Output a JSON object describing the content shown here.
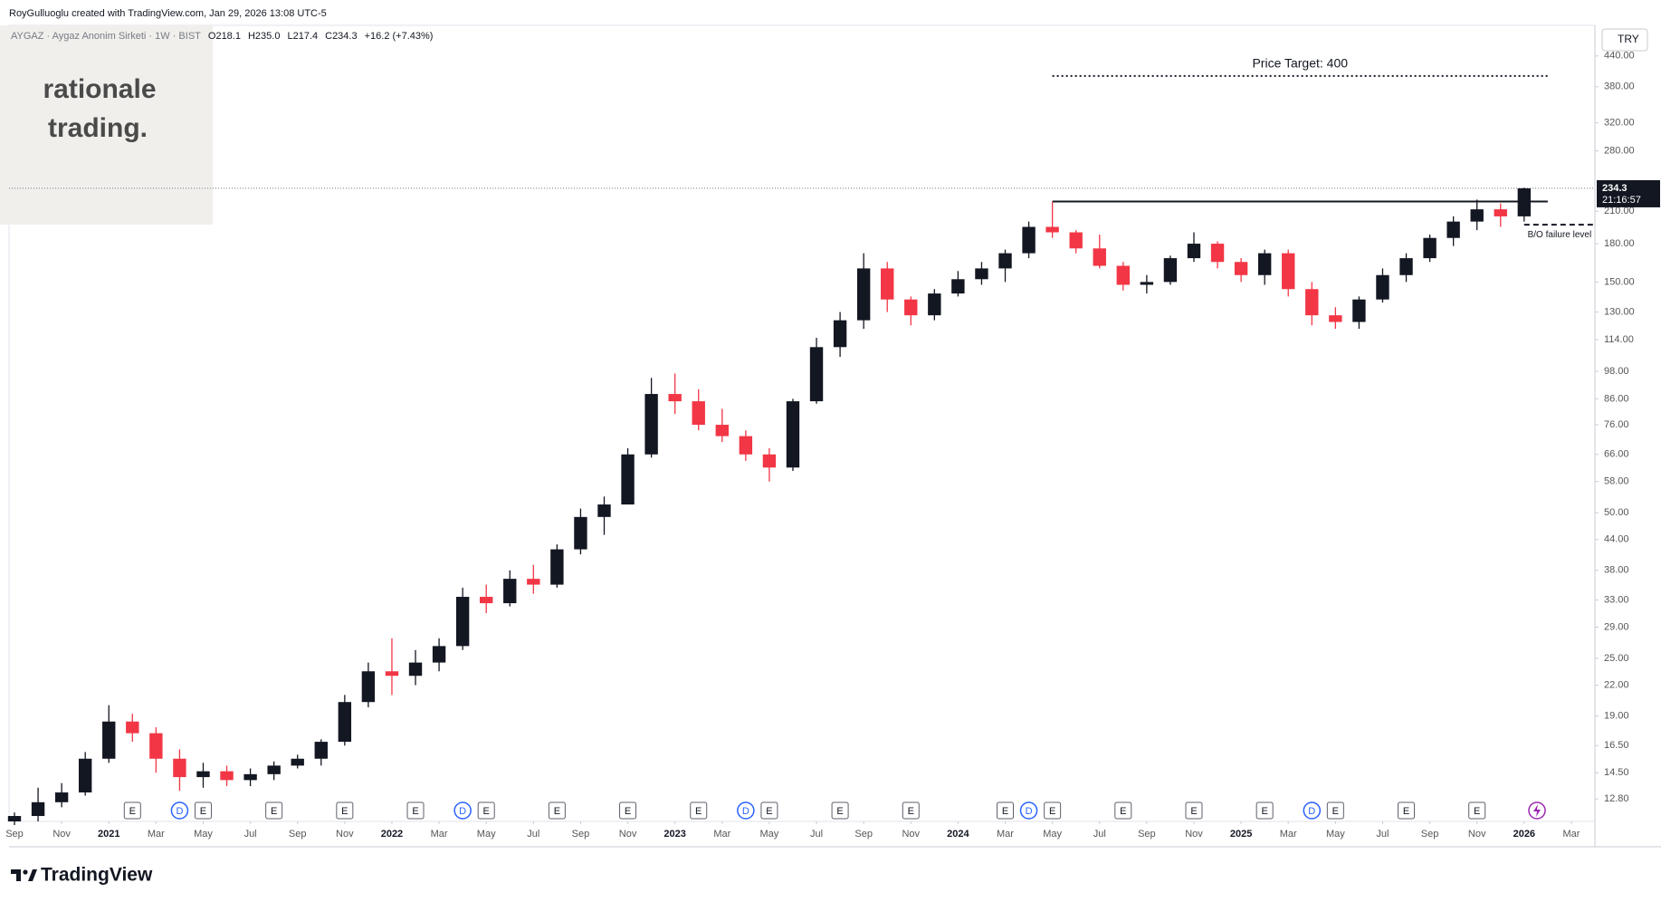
{
  "chart_data": {
    "type": "candlestick",
    "credit": "RoyGulluoglu created with TradingView.com, Jan 29, 2026 13:08 UTC-5",
    "symbol": "AYGAZ · Aygaz Anonim Sirketi · 1W · BIST",
    "ohlc_header": [
      "O218.1",
      "H235.0",
      "L217.4",
      "C234.3",
      "+16.2 (+7.43%)"
    ],
    "watermark": [
      "rationale",
      "trading."
    ],
    "currency": "TRY",
    "logo": "TradingView",
    "up_color": "#131722",
    "down_color": "#f23645",
    "log_scale": true,
    "grid": false,
    "x": [
      "2020-09",
      "2020-10",
      "2020-11",
      "2020-12",
      "2021-01",
      "2021-02",
      "2021-03",
      "2021-04",
      "2021-05",
      "2021-06",
      "2021-07",
      "2021-08",
      "2021-09",
      "2021-10",
      "2021-11",
      "2021-12",
      "2022-01",
      "2022-02",
      "2022-03",
      "2022-04",
      "2022-05",
      "2022-06",
      "2022-07",
      "2022-08",
      "2022-09",
      "2022-10",
      "2022-11",
      "2022-12",
      "2023-01",
      "2023-02",
      "2023-03",
      "2023-04",
      "2023-05",
      "2023-06",
      "2023-07",
      "2023-08",
      "2023-09",
      "2023-10",
      "2023-11",
      "2023-12",
      "2024-01",
      "2024-02",
      "2024-03",
      "2024-04",
      "2024-05",
      "2024-06",
      "2024-07",
      "2024-08",
      "2024-09",
      "2024-10",
      "2024-11",
      "2024-12",
      "2025-01",
      "2025-02",
      "2025-03",
      "2025-04",
      "2025-05",
      "2025-06",
      "2025-07",
      "2025-08",
      "2025-09",
      "2025-10",
      "2025-11",
      "2025-12",
      "2026-01"
    ],
    "open": [
      11.5,
      11.8,
      12.6,
      13.2,
      15.5,
      18.5,
      17.5,
      15.5,
      14.2,
      14.6,
      14,
      14.4,
      15,
      15.5,
      16.8,
      20.3,
      23.5,
      23,
      24.5,
      26.5,
      33.5,
      32.5,
      36.5,
      35.5,
      42,
      49,
      52,
      66,
      88,
      85,
      76,
      72,
      66,
      62,
      85,
      110,
      125,
      160,
      138,
      128,
      142,
      152,
      160,
      172,
      195,
      190,
      176,
      162,
      148,
      150,
      168,
      180,
      165,
      155,
      172,
      145,
      128,
      124,
      138,
      155,
      168,
      185,
      200,
      212,
      205
    ],
    "high": [
      12,
      13.5,
      13.8,
      16,
      20,
      19.2,
      18,
      16.2,
      15.2,
      15,
      14.8,
      15.3,
      15.8,
      17,
      21,
      24.5,
      27.5,
      26,
      27.5,
      35,
      35.5,
      38,
      39,
      43,
      51,
      54,
      68,
      95,
      97,
      90,
      82,
      74,
      68,
      86,
      115,
      130,
      172,
      165,
      140,
      145,
      158,
      165,
      175,
      200,
      220,
      192,
      188,
      165,
      155,
      170,
      190,
      182,
      168,
      175,
      175,
      150,
      133,
      140,
      160,
      172,
      188,
      205,
      222,
      218,
      235
    ],
    "low": [
      11.3,
      11.5,
      12.3,
      13,
      15.2,
      16.8,
      14.5,
      13.3,
      13.5,
      13.6,
      13.6,
      14,
      14.8,
      15,
      16.5,
      19.8,
      21,
      22,
      23.5,
      26,
      31,
      32,
      34,
      35,
      41,
      45,
      52,
      65,
      80,
      74,
      70,
      64,
      58,
      61,
      84,
      105,
      120,
      130,
      122,
      125,
      140,
      148,
      150,
      168,
      185,
      172,
      160,
      144,
      142,
      148,
      165,
      160,
      150,
      148,
      140,
      122,
      120,
      120,
      136,
      150,
      165,
      178,
      192,
      195,
      200
    ],
    "close": [
      11.8,
      12.6,
      13.2,
      15.5,
      18.5,
      17.5,
      15.5,
      14.2,
      14.6,
      14,
      14.4,
      15,
      15.5,
      16.8,
      20.3,
      23.5,
      23,
      24.5,
      26.5,
      33.5,
      32.5,
      36.5,
      35.5,
      42,
      49,
      52,
      66,
      88,
      85,
      76,
      72,
      66,
      62,
      85,
      110,
      125,
      160,
      138,
      128,
      142,
      152,
      160,
      172,
      195,
      190,
      176,
      162,
      148,
      150,
      168,
      180,
      165,
      155,
      172,
      145,
      128,
      124,
      138,
      155,
      168,
      185,
      200,
      212,
      205,
      234.3
    ],
    "xlim": [
      "2020-09",
      "2026-04"
    ],
    "xticks": [
      {
        "value": "2020-09",
        "label": "Sep"
      },
      {
        "value": "2020-11",
        "label": "Nov"
      },
      {
        "value": "2021-01",
        "label": "2021"
      },
      {
        "value": "2021-03",
        "label": "Mar"
      },
      {
        "value": "2021-05",
        "label": "May"
      },
      {
        "value": "2021-07",
        "label": "Jul"
      },
      {
        "value": "2021-09",
        "label": "Sep"
      },
      {
        "value": "2021-11",
        "label": "Nov"
      },
      {
        "value": "2022-01",
        "label": "2022"
      },
      {
        "value": "2022-03",
        "label": "Mar"
      },
      {
        "value": "2022-05",
        "label": "May"
      },
      {
        "value": "2022-07",
        "label": "Jul"
      },
      {
        "value": "2022-09",
        "label": "Sep"
      },
      {
        "value": "2022-11",
        "label": "Nov"
      },
      {
        "value": "2023-01",
        "label": "2023"
      },
      {
        "value": "2023-03",
        "label": "Mar"
      },
      {
        "value": "2023-05",
        "label": "May"
      },
      {
        "value": "2023-07",
        "label": "Jul"
      },
      {
        "value": "2023-09",
        "label": "Sep"
      },
      {
        "value": "2023-11",
        "label": "Nov"
      },
      {
        "value": "2024-01",
        "label": "2024"
      },
      {
        "value": "2024-03",
        "label": "Mar"
      },
      {
        "value": "2024-05",
        "label": "May"
      },
      {
        "value": "2024-07",
        "label": "Jul"
      },
      {
        "value": "2024-09",
        "label": "Sep"
      },
      {
        "value": "2024-11",
        "label": "Nov"
      },
      {
        "value": "2025-01",
        "label": "2025"
      },
      {
        "value": "2025-03",
        "label": "Mar"
      },
      {
        "value": "2025-05",
        "label": "May"
      },
      {
        "value": "2025-07",
        "label": "Jul"
      },
      {
        "value": "2025-09",
        "label": "Sep"
      },
      {
        "value": "2025-11",
        "label": "Nov"
      },
      {
        "value": "2026-01",
        "label": "2026"
      },
      {
        "value": "2026-03",
        "label": "Mar"
      }
    ],
    "ylim": [
      11.5,
      509
    ],
    "yticks": [
      {
        "value": 440,
        "label": "440.00"
      },
      {
        "value": 380,
        "label": "380.00"
      },
      {
        "value": 320,
        "label": "320.00"
      },
      {
        "value": 280,
        "label": "280.00"
      },
      {
        "value": 210,
        "label": "210.00"
      },
      {
        "value": 180,
        "label": "180.00"
      },
      {
        "value": 150,
        "label": "150.00"
      },
      {
        "value": 130,
        "label": "130.00"
      },
      {
        "value": 114,
        "label": "114.00"
      },
      {
        "value": 98,
        "label": "98.00"
      },
      {
        "value": 86,
        "label": "86.00"
      },
      {
        "value": 76,
        "label": "76.00"
      },
      {
        "value": 66,
        "label": "66.00"
      },
      {
        "value": 58,
        "label": "58.00"
      },
      {
        "value": 50,
        "label": "50.00"
      },
      {
        "value": 44,
        "label": "44.00"
      },
      {
        "value": 38,
        "label": "38.00"
      },
      {
        "value": 33,
        "label": "33.00"
      },
      {
        "value": 29,
        "label": "29.00"
      },
      {
        "value": 25,
        "label": "25.00"
      },
      {
        "value": 22,
        "label": "22.00"
      },
      {
        "value": 19,
        "label": "19.00"
      },
      {
        "value": 16.5,
        "label": "16.50"
      },
      {
        "value": 14.5,
        "label": "14.50"
      },
      {
        "value": 12.8,
        "label": "12.80"
      }
    ],
    "last_price": 234.3,
    "countdown": "21:16:57",
    "price_target": {
      "label": "Price Target: 400",
      "value": 400,
      "from": "2024-05",
      "to": "2026-02"
    },
    "resistance": {
      "value": 220,
      "from": "2024-05",
      "to": "2026-02"
    },
    "failure_level": {
      "label": "B/O failure level",
      "value": 197,
      "from": "2026-01",
      "to": "2026-04"
    },
    "events": [
      {
        "x": "2021-02",
        "label": "E"
      },
      {
        "x": "2021-04",
        "label": "D"
      },
      {
        "x": "2021-05",
        "label": "E"
      },
      {
        "x": "2021-08",
        "label": "E"
      },
      {
        "x": "2021-11",
        "label": "E"
      },
      {
        "x": "2022-02",
        "label": "E"
      },
      {
        "x": "2022-04",
        "label": "D"
      },
      {
        "x": "2022-05",
        "label": "E"
      },
      {
        "x": "2022-08",
        "label": "E"
      },
      {
        "x": "2022-11",
        "label": "E"
      },
      {
        "x": "2023-02",
        "label": "E"
      },
      {
        "x": "2023-04",
        "label": "D"
      },
      {
        "x": "2023-05",
        "label": "E"
      },
      {
        "x": "2023-08",
        "label": "E"
      },
      {
        "x": "2023-11",
        "label": "E"
      },
      {
        "x": "2024-03",
        "label": "E"
      },
      {
        "x": "2024-04",
        "label": "D"
      },
      {
        "x": "2024-05",
        "label": "E"
      },
      {
        "x": "2024-08",
        "label": "E"
      },
      {
        "x": "2024-11",
        "label": "E"
      },
      {
        "x": "2025-02",
        "label": "E"
      },
      {
        "x": "2025-04",
        "label": "D"
      },
      {
        "x": "2025-05",
        "label": "E"
      },
      {
        "x": "2025-08",
        "label": "E"
      },
      {
        "x": "2025-11",
        "label": "E"
      }
    ]
  }
}
